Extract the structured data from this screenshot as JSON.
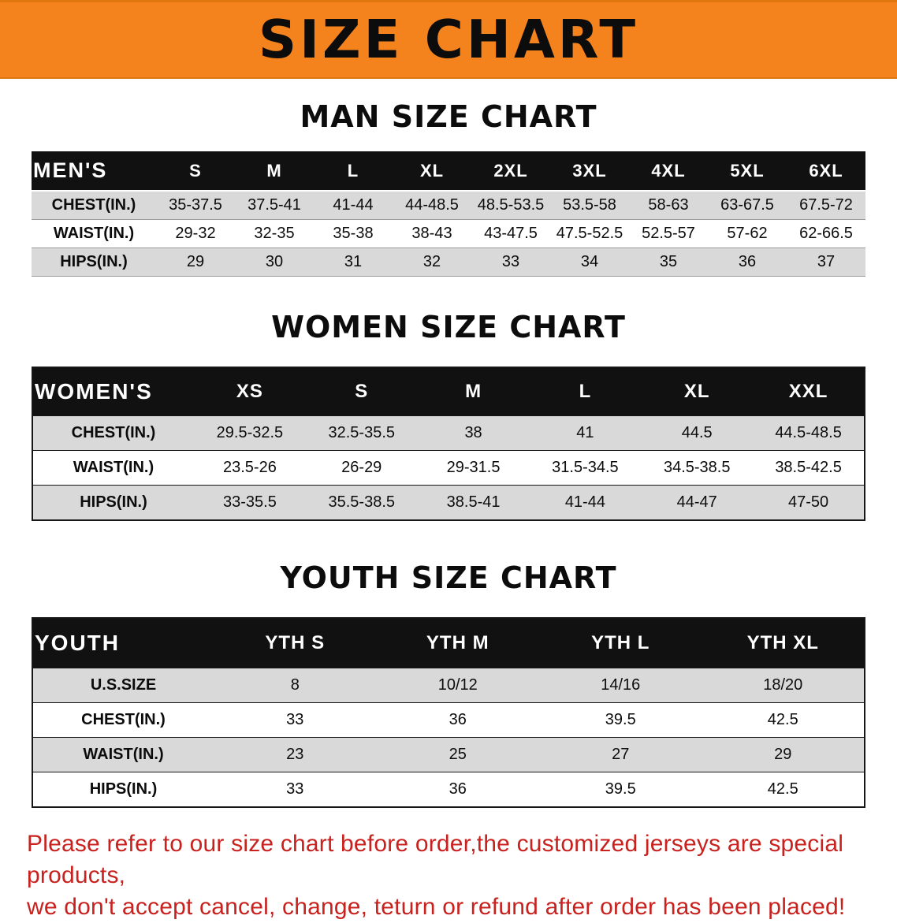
{
  "banner": {
    "title": "SIZE CHART"
  },
  "sections": [
    {
      "heading": "MAN SIZE CHART",
      "table": {
        "header": [
          "MEN'S",
          "S",
          "M",
          "L",
          "XL",
          "2XL",
          "3XL",
          "4XL",
          "5XL",
          "6XL"
        ],
        "rows": [
          [
            "CHEST(IN.)",
            "35-37.5",
            "37.5-41",
            "41-44",
            "44-48.5",
            "48.5-53.5",
            "53.5-58",
            "58-63",
            "63-67.5",
            "67.5-72"
          ],
          [
            "WAIST(IN.)",
            "29-32",
            "32-35",
            "35-38",
            "38-43",
            "43-47.5",
            "47.5-52.5",
            "52.5-57",
            "57-62",
            "62-66.5"
          ],
          [
            "HIPS(IN.)",
            "29",
            "30",
            "31",
            "32",
            "33",
            "34",
            "35",
            "36",
            "37"
          ]
        ]
      }
    },
    {
      "heading": "WOMEN SIZE CHART",
      "table": {
        "header": [
          "WOMEN'S",
          "XS",
          "S",
          "M",
          "L",
          "XL",
          "XXL"
        ],
        "rows": [
          [
            "CHEST(IN.)",
            "29.5-32.5",
            "32.5-35.5",
            "38",
            "41",
            "44.5",
            "44.5-48.5"
          ],
          [
            "WAIST(IN.)",
            "23.5-26",
            "26-29",
            "29-31.5",
            "31.5-34.5",
            "34.5-38.5",
            "38.5-42.5"
          ],
          [
            "HIPS(IN.)",
            "33-35.5",
            "35.5-38.5",
            "38.5-41",
            "41-44",
            "44-47",
            "47-50"
          ]
        ]
      }
    },
    {
      "heading": "YOUTH SIZE CHART",
      "table": {
        "header": [
          "YOUTH",
          "YTH S",
          "YTH M",
          "YTH L",
          "YTH XL"
        ],
        "rows": [
          [
            "U.S.SIZE",
            "8",
            "10/12",
            "14/16",
            "18/20"
          ],
          [
            "CHEST(IN.)",
            "33",
            "36",
            "39.5",
            "42.5"
          ],
          [
            "WAIST(IN.)",
            "23",
            "25",
            "27",
            "29"
          ],
          [
            "HIPS(IN.)",
            "33",
            "36",
            "39.5",
            "42.5"
          ]
        ]
      }
    }
  ],
  "footer": {
    "line1": "Please refer to our size chart before order,the customized jerseys are special products,",
    "line2": "we don't accept cancel, change, teturn or refund after order has been placed!"
  },
  "colors": {
    "banner_bg": "#F5831D",
    "header_bg": "#111111",
    "stripe_gray": "#D9D9D9",
    "footer_red": "#C9211E"
  }
}
